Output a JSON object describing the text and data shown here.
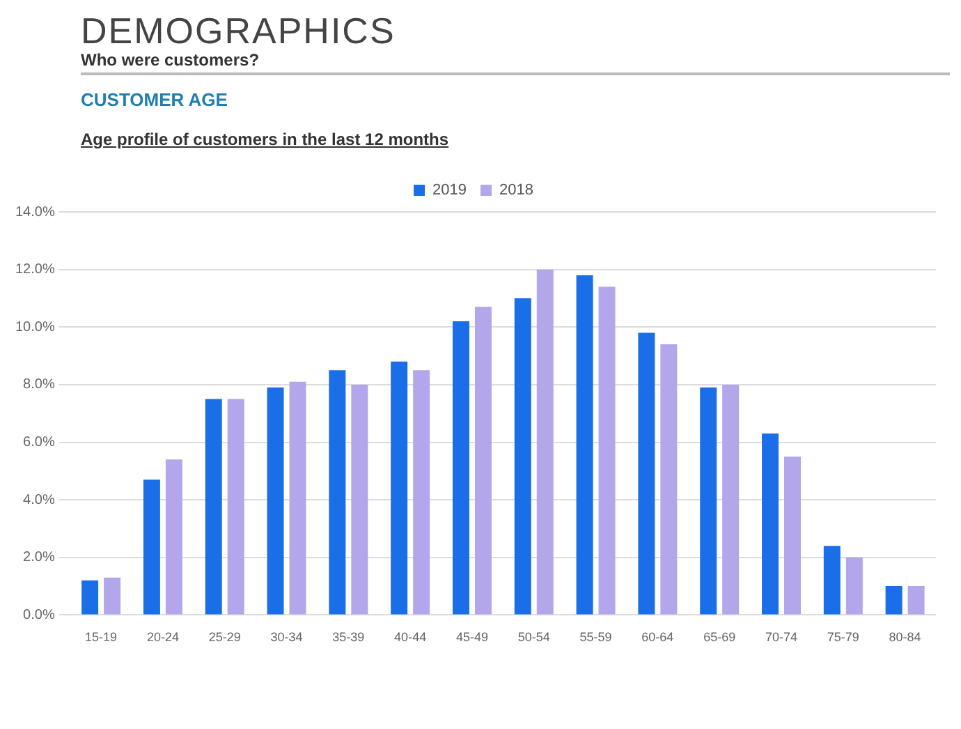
{
  "chart_data": {
    "type": "bar",
    "title": "DEMOGRAPHICS",
    "subtitle": "Who were customers?",
    "annotations": [
      "CUSTOMER AGE",
      "Age profile of customers in the last 12 months"
    ],
    "categories": [
      "15-19",
      "20-24",
      "25-29",
      "30-34",
      "35-39",
      "40-44",
      "45-49",
      "50-54",
      "55-59",
      "60-64",
      "65-69",
      "70-74",
      "75-79",
      "80-84"
    ],
    "series": [
      {
        "name": "2019",
        "color": "#1a6fe8",
        "values": [
          1.2,
          4.7,
          7.5,
          7.9,
          8.5,
          8.8,
          10.2,
          11.0,
          11.8,
          9.8,
          7.9,
          6.3,
          2.4,
          1.0
        ]
      },
      {
        "name": "2018",
        "color": "#b3a6ea",
        "values": [
          1.3,
          5.4,
          7.5,
          8.1,
          8.0,
          8.5,
          10.7,
          12.0,
          11.4,
          9.4,
          8.0,
          5.5,
          2.0,
          1.0
        ]
      }
    ],
    "ylim": [
      0,
      14
    ],
    "yticks": [
      {
        "value": 0,
        "label": "0.0%"
      },
      {
        "value": 2,
        "label": "2.0%"
      },
      {
        "value": 4,
        "label": "4.0%"
      },
      {
        "value": 6,
        "label": "6.0%"
      },
      {
        "value": 8,
        "label": "8.0%"
      },
      {
        "value": 10,
        "label": "10.0%"
      },
      {
        "value": 12,
        "label": "12.0%"
      },
      {
        "value": 14,
        "label": "14.0%"
      }
    ],
    "grid": "y",
    "legend": "top"
  }
}
